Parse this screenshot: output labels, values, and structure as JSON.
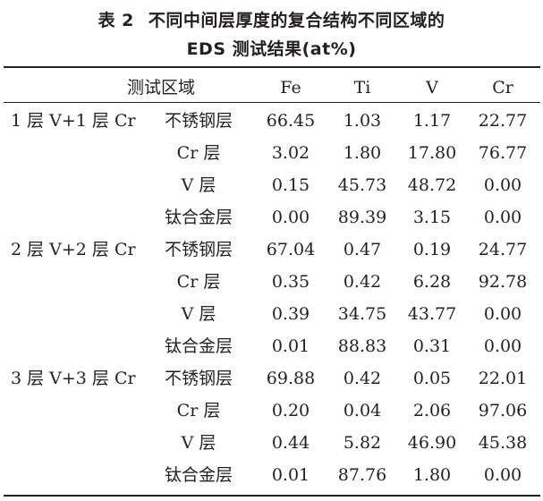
{
  "caption": {
    "label": "表 2",
    "line1": "不同中间层厚度的复合结构不同区域的",
    "line2": "EDS 测试结果(at%)"
  },
  "table": {
    "headers": [
      "测试区域",
      "Fe",
      "Ti",
      "V",
      "Cr"
    ],
    "groups": [
      {
        "label": "1 层 V+1 层 Cr",
        "rows": [
          {
            "region": "不锈钢层",
            "fe": "66.45",
            "ti": "1.03",
            "v": "1.17",
            "cr": "22.77"
          },
          {
            "region": "Cr 层",
            "fe": "3.02",
            "ti": "1.80",
            "v": "17.80",
            "cr": "76.77"
          },
          {
            "region": "V 层",
            "fe": "0.15",
            "ti": "45.73",
            "v": "48.72",
            "cr": "0.00"
          },
          {
            "region": "钛合金层",
            "fe": "0.00",
            "ti": "89.39",
            "v": "3.15",
            "cr": "0.00"
          }
        ]
      },
      {
        "label": "2 层 V+2 层 Cr",
        "rows": [
          {
            "region": "不锈钢层",
            "fe": "67.04",
            "ti": "0.47",
            "v": "0.19",
            "cr": "24.77"
          },
          {
            "region": "Cr 层",
            "fe": "0.35",
            "ti": "0.42",
            "v": "6.28",
            "cr": "92.78"
          },
          {
            "region": "V 层",
            "fe": "0.39",
            "ti": "34.75",
            "v": "43.77",
            "cr": "0.00"
          },
          {
            "region": "钛合金层",
            "fe": "0.01",
            "ti": "88.83",
            "v": "0.31",
            "cr": "0.00"
          }
        ]
      },
      {
        "label": "3 层 V+3 层 Cr",
        "rows": [
          {
            "region": "不锈钢层",
            "fe": "69.88",
            "ti": "0.42",
            "v": "0.05",
            "cr": "22.01"
          },
          {
            "region": "Cr 层",
            "fe": "0.20",
            "ti": "0.04",
            "v": "2.06",
            "cr": "97.06"
          },
          {
            "region": "V 层",
            "fe": "0.44",
            "ti": "5.82",
            "v": "46.90",
            "cr": "45.38"
          },
          {
            "region": "钛合金层",
            "fe": "0.01",
            "ti": "87.76",
            "v": "1.80",
            "cr": "0.00"
          }
        ]
      }
    ]
  }
}
